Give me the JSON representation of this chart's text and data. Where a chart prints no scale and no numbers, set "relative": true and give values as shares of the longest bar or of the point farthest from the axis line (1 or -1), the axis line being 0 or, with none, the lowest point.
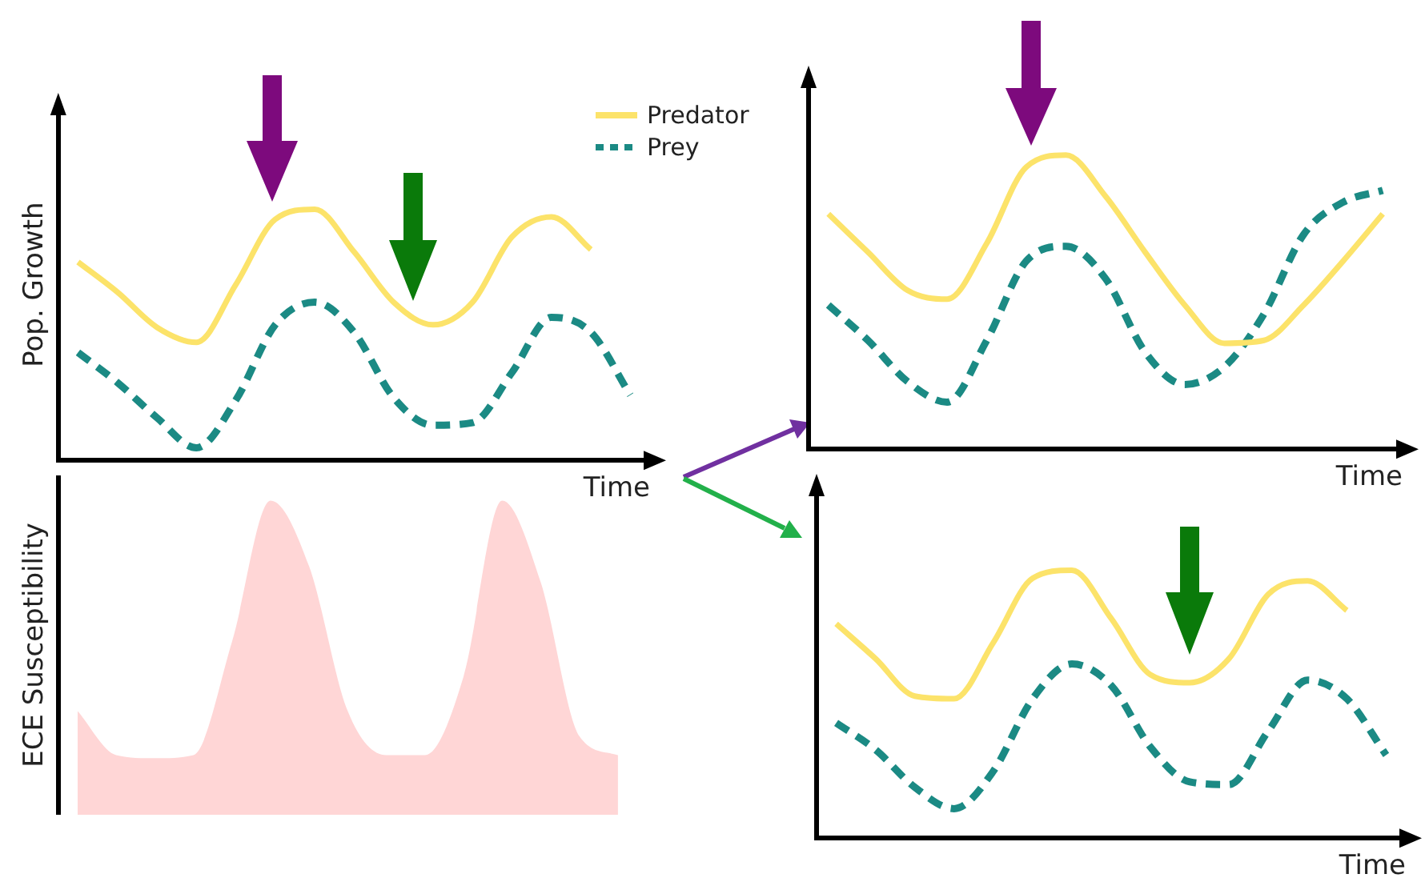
{
  "chart_data": [
    {
      "type": "line",
      "ylabel": "Pop. Growth",
      "xlabel": "Time",
      "relative": true,
      "marker": "none",
      "legend": "top right",
      "categories": [
        null,
        null,
        null,
        null,
        null,
        null,
        null,
        null,
        null,
        null,
        null,
        null,
        null,
        null,
        null
      ],
      "series": [
        {
          "name": "Predator",
          "color": "#fce36a",
          "line_style": "solid",
          "values": [
            0.79,
            0.67,
            0.53,
            0.47,
            0.7,
            0.96,
            1,
            0.83,
            0.63,
            0.54,
            0.63,
            0.89,
            0.97,
            0.84,
            null
          ]
        },
        {
          "name": "Prey",
          "color": "#1b8a84",
          "line_style": "dashed",
          "values": [
            0.43,
            0.31,
            0.17,
            0.05,
            0.24,
            0.54,
            0.63,
            0.51,
            0.25,
            0.14,
            0.15,
            0.35,
            0.57,
            0.51,
            0.26
          ]
        }
      ]
    },
    {
      "type": "area",
      "ylabel": "ECE Susceptibility",
      "relative": true,
      "categories": [
        null,
        null,
        null,
        null,
        null,
        null,
        null,
        null,
        null,
        null,
        null,
        null,
        null,
        null,
        null
      ],
      "series": [
        {
          "color": "#ffd6d6",
          "values": [
            0.33,
            0.19,
            0.18,
            0.19,
            0.55,
            1,
            0.79,
            0.33,
            0.19,
            0.19,
            0.44,
            1,
            0.74,
            0.25,
            0.19
          ]
        }
      ]
    },
    {
      "type": "line",
      "xlabel": "Time",
      "relative": true,
      "marker": "none",
      "categories": [
        null,
        null,
        null,
        null,
        null,
        null,
        null,
        null,
        null,
        null,
        null,
        null,
        null,
        null,
        null
      ],
      "series": [
        {
          "color": "#fce36a",
          "line_style": "solid",
          "values": [
            0.8,
            0.67,
            0.54,
            0.51,
            0.7,
            0.96,
            1,
            0.86,
            0.67,
            0.49,
            0.36,
            0.37,
            0.49,
            0.64,
            0.8
          ]
        },
        {
          "color": "#1b8a84",
          "line_style": "dashed",
          "values": [
            0.49,
            0.37,
            0.23,
            0.16,
            0.37,
            0.64,
            0.69,
            0.58,
            0.33,
            0.22,
            0.28,
            0.46,
            0.73,
            0.84,
            0.88
          ]
        }
      ]
    },
    {
      "type": "line",
      "xlabel": "Time",
      "relative": true,
      "marker": "none",
      "categories": [
        null,
        null,
        null,
        null,
        null,
        null,
        null,
        null,
        null,
        null,
        null,
        null,
        null,
        null,
        null
      ],
      "series": [
        {
          "color": "#fce36a",
          "line_style": "solid",
          "values": [
            0.8,
            0.67,
            0.53,
            0.52,
            0.73,
            0.97,
            1,
            0.82,
            0.61,
            0.58,
            0.67,
            0.91,
            0.96,
            0.85,
            null
          ]
        },
        {
          "color": "#1b8a84",
          "line_style": "dashed",
          "values": [
            0.43,
            0.33,
            0.19,
            0.11,
            0.25,
            0.52,
            0.65,
            0.57,
            0.34,
            0.21,
            0.2,
            0.4,
            0.59,
            0.52,
            0.31
          ]
        }
      ]
    }
  ]
}
